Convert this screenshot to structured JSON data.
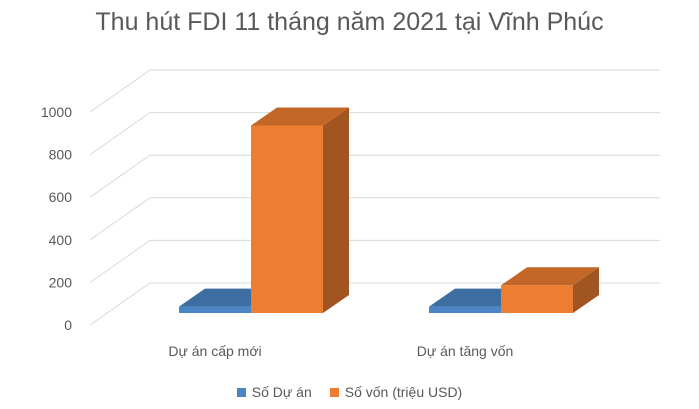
{
  "chart_data": {
    "type": "bar",
    "title": "Thu hút FDI 11 tháng năm 2021 tại Vĩnh Phúc",
    "categories": [
      "Dự án cấp mới",
      "Dự án tăng vốn"
    ],
    "series": [
      {
        "name": "Số Dự án",
        "values": [
          30,
          30
        ],
        "color": "#4A86C5"
      },
      {
        "name": "Số vốn (triệu USD)",
        "values": [
          880,
          130
        ],
        "color": "#ED7D31"
      }
    ],
    "yticks": [
      "0",
      "200",
      "400",
      "600",
      "800",
      "1000"
    ],
    "ylim": [
      0,
      1000
    ],
    "grid": true,
    "legend": "bottom"
  }
}
